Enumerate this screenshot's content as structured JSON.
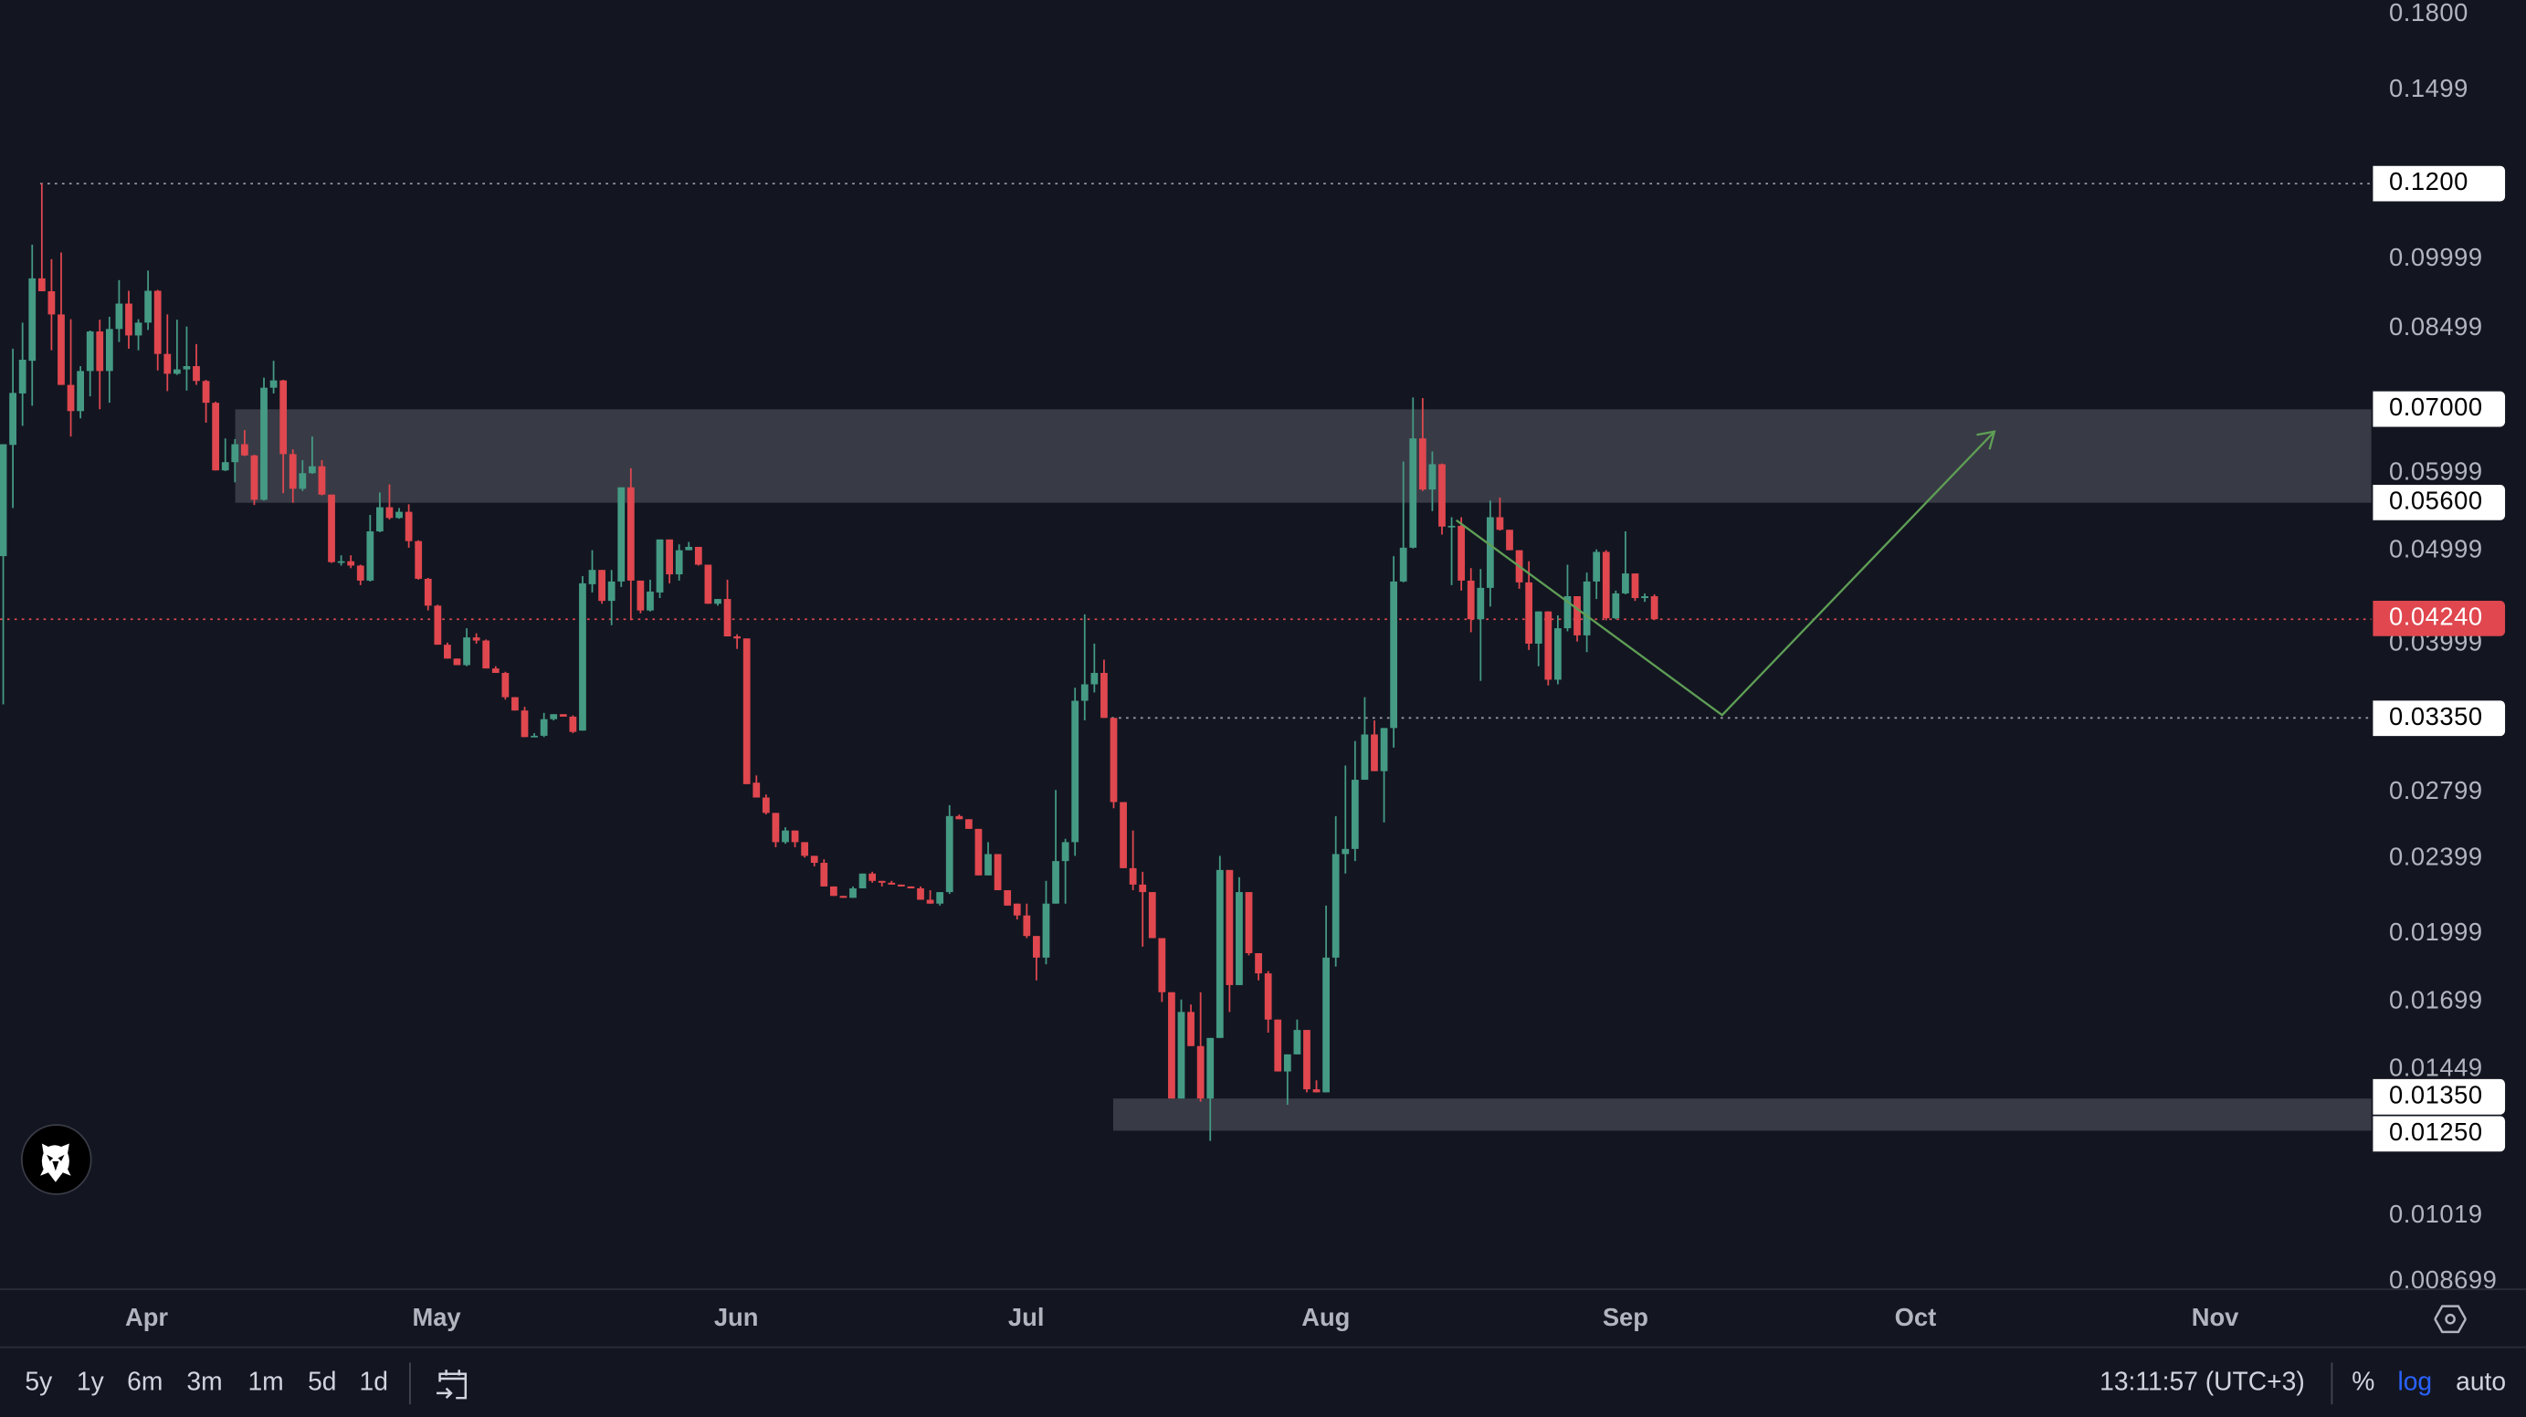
{
  "colors": {
    "background": "#131621",
    "up": "#459a84",
    "down": "#e0474f",
    "zone": "#383b45",
    "projection": "#5f9f55",
    "log_active": "#2962ff"
  },
  "chart_data": {
    "type": "candlestick",
    "scale": "log",
    "ylim": [
      0.0085,
      0.185
    ],
    "x_tick_labels": [
      "Apr",
      "May",
      "Jun",
      "Jul",
      "Aug",
      "Sep",
      "Oct",
      "Nov"
    ],
    "y_tick_labels": [
      "0.1800",
      "0.1499",
      "0.09999",
      "0.08499",
      "0.05999",
      "0.04999",
      "0.03999",
      "0.02799",
      "0.02399",
      "0.01999",
      "0.01699",
      "0.01449",
      "0.01019",
      "0.008699"
    ],
    "price_levels": [
      {
        "label": "0.1200",
        "kind": "line"
      },
      {
        "label": "0.07000",
        "kind": "zone-top"
      },
      {
        "label": "0.05600",
        "kind": "zone-bottom"
      },
      {
        "label": "0.04240",
        "kind": "current"
      },
      {
        "label": "0.03350",
        "kind": "line"
      },
      {
        "label": "0.01350",
        "kind": "zone-top"
      },
      {
        "label": "0.01250",
        "kind": "zone-bottom"
      }
    ],
    "ohlc_fields": [
      "open",
      "high",
      "low",
      "close"
    ],
    "candles": [
      [
        0.0493,
        0.0644,
        0.0346,
        0.0644
      ],
      [
        0.0643,
        0.0809,
        0.0553,
        0.0728
      ],
      [
        0.0727,
        0.0861,
        0.0673,
        0.0788
      ],
      [
        0.0786,
        0.1037,
        0.0706,
        0.0957
      ],
      [
        0.0957,
        0.1201,
        0.0928,
        0.0928
      ],
      [
        0.0928,
        0.1002,
        0.0806,
        0.0878
      ],
      [
        0.0878,
        0.1018,
        0.0742,
        0.0742
      ],
      [
        0.0742,
        0.0868,
        0.0656,
        0.0697
      ],
      [
        0.0697,
        0.0776,
        0.0685,
        0.0767
      ],
      [
        0.0767,
        0.0845,
        0.0722,
        0.0843
      ],
      [
        0.0843,
        0.0867,
        0.07,
        0.0767
      ],
      [
        0.0767,
        0.0873,
        0.0711,
        0.0848
      ],
      [
        0.0848,
        0.0953,
        0.0822,
        0.0901
      ],
      [
        0.0901,
        0.0929,
        0.0809,
        0.0835
      ],
      [
        0.0835,
        0.0868,
        0.0806,
        0.0861
      ],
      [
        0.0861,
        0.0975,
        0.0846,
        0.0929
      ],
      [
        0.0929,
        0.0931,
        0.0768,
        0.0799
      ],
      [
        0.0799,
        0.0878,
        0.0731,
        0.0762
      ],
      [
        0.0762,
        0.0867,
        0.076,
        0.077
      ],
      [
        0.077,
        0.0853,
        0.0732,
        0.0776
      ],
      [
        0.0776,
        0.0818,
        0.0742,
        0.0749
      ],
      [
        0.0749,
        0.0751,
        0.0678,
        0.0711
      ],
      [
        0.0711,
        0.0713,
        0.0605,
        0.0605
      ],
      [
        0.0605,
        0.0653,
        0.0604,
        0.0617
      ],
      [
        0.0617,
        0.0652,
        0.0588,
        0.0644
      ],
      [
        0.0644,
        0.0666,
        0.0626,
        0.0627
      ],
      [
        0.0627,
        0.0628,
        0.0557,
        0.0564
      ],
      [
        0.0564,
        0.0755,
        0.0563,
        0.0737
      ],
      [
        0.0737,
        0.0786,
        0.0727,
        0.075
      ],
      [
        0.075,
        0.0751,
        0.0573,
        0.0629
      ],
      [
        0.0629,
        0.0636,
        0.056,
        0.0579
      ],
      [
        0.0579,
        0.062,
        0.0576,
        0.0601
      ],
      [
        0.0601,
        0.0656,
        0.06,
        0.0611
      ],
      [
        0.0611,
        0.062,
        0.057,
        0.0571
      ],
      [
        0.0571,
        0.0571,
        0.0485,
        0.0486
      ],
      [
        0.0486,
        0.0494,
        0.0482,
        0.0487
      ],
      [
        0.0487,
        0.0494,
        0.0479,
        0.0482
      ],
      [
        0.0482,
        0.0483,
        0.046,
        0.0465
      ],
      [
        0.0465,
        0.0544,
        0.0464,
        0.0523
      ],
      [
        0.0523,
        0.0574,
        0.0522,
        0.0554
      ],
      [
        0.0554,
        0.0585,
        0.0538,
        0.054
      ],
      [
        0.054,
        0.0553,
        0.0539,
        0.0548
      ],
      [
        0.0548,
        0.0558,
        0.0503,
        0.0511
      ],
      [
        0.0511,
        0.0512,
        0.0466,
        0.0467
      ],
      [
        0.0467,
        0.0468,
        0.0433,
        0.0438
      ],
      [
        0.0438,
        0.0439,
        0.0399,
        0.0399
      ],
      [
        0.0399,
        0.0401,
        0.0386,
        0.0386
      ],
      [
        0.0386,
        0.0386,
        0.038,
        0.038
      ],
      [
        0.038,
        0.0415,
        0.0379,
        0.0406
      ],
      [
        0.0406,
        0.041,
        0.04,
        0.0403
      ],
      [
        0.0403,
        0.0404,
        0.0377,
        0.0377
      ],
      [
        0.0377,
        0.0379,
        0.0373,
        0.0373
      ],
      [
        0.0373,
        0.0374,
        0.035,
        0.0352
      ],
      [
        0.0352,
        0.0352,
        0.0341,
        0.0341
      ],
      [
        0.0341,
        0.0344,
        0.032,
        0.032
      ],
      [
        0.032,
        0.0323,
        0.032,
        0.0321
      ],
      [
        0.0321,
        0.0339,
        0.032,
        0.0334
      ],
      [
        0.0334,
        0.0338,
        0.0333,
        0.0338
      ],
      [
        0.0338,
        0.0338,
        0.0336,
        0.0336
      ],
      [
        0.0336,
        0.0337,
        0.0323,
        0.0324
      ],
      [
        0.0325,
        0.047,
        0.0325,
        0.0462
      ],
      [
        0.0461,
        0.05,
        0.0452,
        0.0477
      ],
      [
        0.0477,
        0.0477,
        0.044,
        0.0443
      ],
      [
        0.0443,
        0.0477,
        0.0418,
        0.0464
      ],
      [
        0.0464,
        0.0581,
        0.0458,
        0.0581
      ],
      [
        0.0581,
        0.0608,
        0.0423,
        0.0465
      ],
      [
        0.0465,
        0.0465,
        0.043,
        0.0433
      ],
      [
        0.0433,
        0.0466,
        0.0432,
        0.0453
      ],
      [
        0.0452,
        0.0513,
        0.0446,
        0.0513
      ],
      [
        0.0513,
        0.0513,
        0.0462,
        0.0472
      ],
      [
        0.0472,
        0.0507,
        0.0465,
        0.05
      ],
      [
        0.05,
        0.051,
        0.05,
        0.0504
      ],
      [
        0.0504,
        0.0504,
        0.0482,
        0.0483
      ],
      [
        0.0483,
        0.0483,
        0.044,
        0.044
      ],
      [
        0.044,
        0.0445,
        0.0438,
        0.0445
      ],
      [
        0.0445,
        0.0466,
        0.0407,
        0.0407
      ],
      [
        0.0407,
        0.0409,
        0.0395,
        0.0405
      ],
      [
        0.0405,
        0.0405,
        0.0286,
        0.0286
      ],
      [
        0.0287,
        0.0292,
        0.0277,
        0.0277
      ],
      [
        0.0277,
        0.0279,
        0.0266,
        0.0267
      ],
      [
        0.0267,
        0.0267,
        0.0246,
        0.0249
      ],
      [
        0.0249,
        0.0258,
        0.0248,
        0.0256
      ],
      [
        0.0256,
        0.0256,
        0.0246,
        0.0249
      ],
      [
        0.0249,
        0.0249,
        0.024,
        0.0241
      ],
      [
        0.0241,
        0.0241,
        0.0235,
        0.0237
      ],
      [
        0.0237,
        0.0239,
        0.0224,
        0.0224
      ],
      [
        0.0224,
        0.0224,
        0.0219,
        0.0219
      ],
      [
        0.0219,
        0.0219,
        0.0218,
        0.0218
      ],
      [
        0.0218,
        0.0224,
        0.0218,
        0.0223
      ],
      [
        0.0223,
        0.0231,
        0.0223,
        0.0231
      ],
      [
        0.0231,
        0.0232,
        0.0226,
        0.0227
      ],
      [
        0.0227,
        0.0227,
        0.0224,
        0.0226
      ],
      [
        0.0226,
        0.0227,
        0.0225,
        0.0225
      ],
      [
        0.0225,
        0.0225,
        0.0224,
        0.0224
      ],
      [
        0.0224,
        0.0224,
        0.0223,
        0.0223
      ],
      [
        0.0223,
        0.0224,
        0.0217,
        0.0217
      ],
      [
        0.0217,
        0.0222,
        0.0215,
        0.0215
      ],
      [
        0.0215,
        0.0221,
        0.0214,
        0.0221
      ],
      [
        0.0221,
        0.0272,
        0.022,
        0.0265
      ],
      [
        0.0265,
        0.0266,
        0.0263,
        0.0263
      ],
      [
        0.0263,
        0.0263,
        0.0257,
        0.0257
      ],
      [
        0.0257,
        0.0257,
        0.023,
        0.023
      ],
      [
        0.023,
        0.0249,
        0.023,
        0.0242
      ],
      [
        0.0242,
        0.0242,
        0.0222,
        0.0222
      ],
      [
        0.0222,
        0.0222,
        0.0214,
        0.0214
      ],
      [
        0.0215,
        0.0215,
        0.0207,
        0.0209
      ],
      [
        0.0209,
        0.0215,
        0.0198,
        0.0199
      ],
      [
        0.0199,
        0.0199,
        0.0179,
        0.0189
      ],
      [
        0.0189,
        0.0227,
        0.0186,
        0.0215
      ],
      [
        0.0215,
        0.0282,
        0.0215,
        0.0238
      ],
      [
        0.0238,
        0.0251,
        0.0215,
        0.0249
      ],
      [
        0.0249,
        0.036,
        0.0241,
        0.0349
      ],
      [
        0.0349,
        0.0429,
        0.0333,
        0.0363
      ],
      [
        0.0363,
        0.04,
        0.0356,
        0.0373
      ],
      [
        0.0373,
        0.0385,
        0.0335,
        0.0335
      ],
      [
        0.0335,
        0.0335,
        0.027,
        0.0274
      ],
      [
        0.0274,
        0.0274,
        0.0234,
        0.0234
      ],
      [
        0.0234,
        0.0256,
        0.0222,
        0.0225
      ],
      [
        0.0225,
        0.0232,
        0.0194,
        0.0221
      ],
      [
        0.0221,
        0.0221,
        0.0198,
        0.0198
      ],
      [
        0.0198,
        0.0198,
        0.017,
        0.0174
      ],
      [
        0.0174,
        0.0174,
        0.0135,
        0.0135
      ],
      [
        0.0135,
        0.0171,
        0.0135,
        0.0166
      ],
      [
        0.0166,
        0.0169,
        0.0153,
        0.0153
      ],
      [
        0.0153,
        0.0174,
        0.0134,
        0.0135
      ],
      [
        0.0135,
        0.0156,
        0.0122,
        0.0156
      ],
      [
        0.0156,
        0.0241,
        0.0156,
        0.0233
      ],
      [
        0.0233,
        0.0233,
        0.0166,
        0.0177
      ],
      [
        0.0177,
        0.0229,
        0.0177,
        0.0221
      ],
      [
        0.0221,
        0.0221,
        0.019,
        0.0191
      ],
      [
        0.0191,
        0.0191,
        0.0179,
        0.0182
      ],
      [
        0.0182,
        0.0183,
        0.0158,
        0.0163
      ],
      [
        0.0163,
        0.0163,
        0.0144,
        0.0144
      ],
      [
        0.0144,
        0.015,
        0.0133,
        0.015
      ],
      [
        0.015,
        0.0163,
        0.015,
        0.0159
      ],
      [
        0.0159,
        0.0159,
        0.0137,
        0.0138
      ],
      [
        0.0138,
        0.0141,
        0.0137,
        0.0137
      ],
      [
        0.0137,
        0.0214,
        0.0137,
        0.0189
      ],
      [
        0.0189,
        0.0265,
        0.0185,
        0.0242
      ],
      [
        0.0242,
        0.0299,
        0.0231,
        0.0245
      ],
      [
        0.0245,
        0.0317,
        0.0238,
        0.0289
      ],
      [
        0.0289,
        0.0352,
        0.0289,
        0.0322
      ],
      [
        0.0322,
        0.0333,
        0.0295,
        0.0295
      ],
      [
        0.0295,
        0.0327,
        0.0261,
        0.0327
      ],
      [
        0.0327,
        0.0493,
        0.0312,
        0.0464
      ],
      [
        0.0464,
        0.0618,
        0.0463,
        0.0503
      ],
      [
        0.0503,
        0.072,
        0.0502,
        0.0653
      ],
      [
        0.0653,
        0.0719,
        0.0576,
        0.0578
      ],
      [
        0.0578,
        0.0633,
        0.0549,
        0.0614
      ],
      [
        0.0614,
        0.0615,
        0.0519,
        0.0529
      ],
      [
        0.0529,
        0.0541,
        0.046,
        0.053
      ],
      [
        0.053,
        0.0541,
        0.0454,
        0.0465
      ],
      [
        0.0465,
        0.0479,
        0.0411,
        0.0424
      ],
      [
        0.0424,
        0.0478,
        0.0366,
        0.0457
      ],
      [
        0.0457,
        0.0563,
        0.0437,
        0.0541
      ],
      [
        0.0541,
        0.0567,
        0.0524,
        0.0525
      ],
      [
        0.0525,
        0.0525,
        0.05,
        0.05
      ],
      [
        0.05,
        0.05,
        0.0456,
        0.0463
      ],
      [
        0.0463,
        0.0487,
        0.0394,
        0.04
      ],
      [
        0.04,
        0.0432,
        0.0379,
        0.0432
      ],
      [
        0.0432,
        0.0432,
        0.0362,
        0.0367
      ],
      [
        0.0367,
        0.0428,
        0.0363,
        0.0415
      ],
      [
        0.0415,
        0.0483,
        0.0412,
        0.0448
      ],
      [
        0.0448,
        0.0448,
        0.0402,
        0.0408
      ],
      [
        0.0408,
        0.0474,
        0.0392,
        0.0464
      ],
      [
        0.0464,
        0.0501,
        0.0445,
        0.0498
      ],
      [
        0.0498,
        0.05,
        0.0423,
        0.0425
      ],
      [
        0.0425,
        0.0454,
        0.0424,
        0.0451
      ],
      [
        0.0451,
        0.0523,
        0.045,
        0.0473
      ],
      [
        0.0473,
        0.0473,
        0.0443,
        0.0446
      ],
      [
        0.0446,
        0.0451,
        0.0442,
        0.0448
      ],
      [
        0.0448,
        0.045,
        0.0424,
        0.0424
      ]
    ]
  },
  "time_axis": {
    "settings_icon": "hexagon-gear-icon"
  },
  "toolbar": {
    "ranges": [
      "5y",
      "1y",
      "6m",
      "3m",
      "1m",
      "5d",
      "1d"
    ],
    "goto_date_icon": "calendar-arrow-icon",
    "clock": "13:11:57 (UTC+3)",
    "percent": "%",
    "log": "log",
    "auto": "auto"
  },
  "logo": {
    "icon": "eagle-head-icon"
  }
}
